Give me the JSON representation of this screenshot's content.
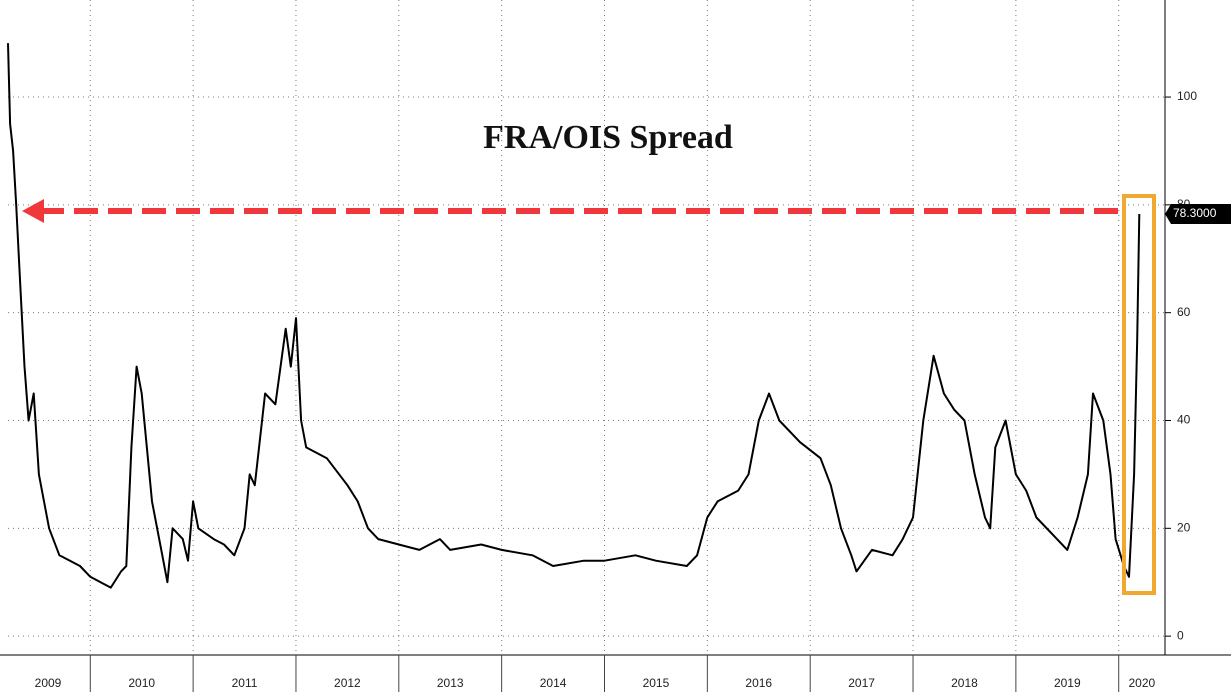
{
  "chart_data": {
    "type": "line",
    "annotations": [
      "FRA/OIS Spread"
    ],
    "x": [
      2009.2,
      2009.22,
      2009.25,
      2009.28,
      2009.32,
      2009.36,
      2009.4,
      2009.45,
      2009.5,
      2009.6,
      2009.7,
      2009.9,
      2010.0,
      2010.1,
      2010.2,
      2010.3,
      2010.35,
      2010.4,
      2010.45,
      2010.5,
      2010.6,
      2010.7,
      2010.75,
      2010.8,
      2010.9,
      2010.95,
      2011.0,
      2011.05,
      2011.2,
      2011.3,
      2011.4,
      2011.5,
      2011.55,
      2011.6,
      2011.7,
      2011.8,
      2011.9,
      2011.95,
      2012.0,
      2012.05,
      2012.1,
      2012.3,
      2012.5,
      2012.6,
      2012.7,
      2012.8,
      2013.0,
      2013.2,
      2013.4,
      2013.5,
      2013.8,
      2014.0,
      2014.3,
      2014.5,
      2014.8,
      2015.0,
      2015.3,
      2015.5,
      2015.8,
      2015.9,
      2016.0,
      2016.1,
      2016.3,
      2016.4,
      2016.5,
      2016.6,
      2016.7,
      2016.9,
      2017.1,
      2017.2,
      2017.3,
      2017.4,
      2017.45,
      2017.6,
      2017.8,
      2017.9,
      2018.0,
      2018.1,
      2018.2,
      2018.3,
      2018.4,
      2018.5,
      2018.6,
      2018.7,
      2018.75,
      2018.8,
      2018.9,
      2019.0,
      2019.1,
      2019.2,
      2019.4,
      2019.5,
      2019.6,
      2019.7,
      2019.75,
      2019.85,
      2019.92,
      2019.97,
      2020.05,
      2020.1,
      2020.15,
      2020.18,
      2020.2
    ],
    "series": [
      {
        "color": "#000000",
        "values": [
          110,
          95,
          90,
          80,
          65,
          50,
          40,
          45,
          30,
          20,
          15,
          13,
          11,
          10,
          9,
          12,
          13,
          35,
          50,
          45,
          25,
          15,
          10,
          20,
          18,
          14,
          25,
          20,
          18,
          17,
          15,
          20,
          30,
          28,
          45,
          43,
          57,
          50,
          59,
          40,
          35,
          33,
          28,
          25,
          20,
          18,
          17,
          16,
          18,
          16,
          17,
          16,
          15,
          13,
          14,
          14,
          15,
          14,
          13,
          15,
          22,
          25,
          27,
          30,
          40,
          45,
          40,
          36,
          33,
          28,
          20,
          15,
          12,
          16,
          15,
          18,
          22,
          40,
          52,
          45,
          42,
          40,
          30,
          22,
          20,
          35,
          40,
          30,
          27,
          22,
          18,
          16,
          22,
          30,
          45,
          40,
          30,
          18,
          13,
          11,
          30,
          55,
          78.3
        ]
      }
    ],
    "last_value": {
      "value": 78.3,
      "label": "78.3000"
    },
    "xlim": [
      2009.2,
      2020.45
    ],
    "xticks": [
      2009,
      2010,
      2011,
      2012,
      2013,
      2014,
      2015,
      2016,
      2017,
      2018,
      2019,
      2020
    ],
    "ylim": [
      -3.5,
      118
    ],
    "yticks": [
      0,
      20,
      40,
      60,
      80,
      100
    ],
    "grid": true
  }
}
